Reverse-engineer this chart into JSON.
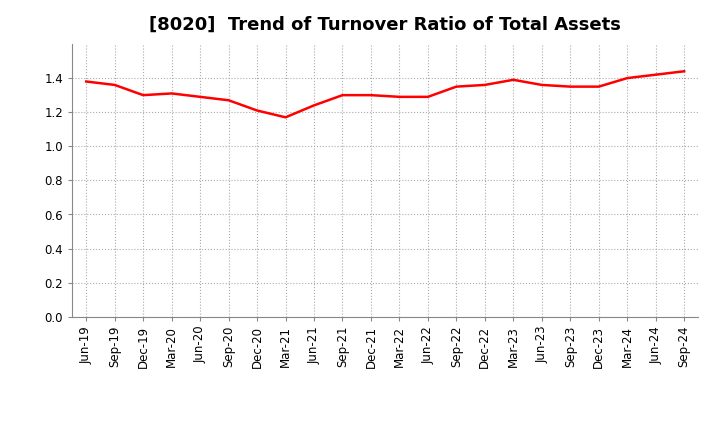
{
  "title": "[8020]  Trend of Turnover Ratio of Total Assets",
  "x_labels": [
    "Jun-19",
    "Sep-19",
    "Dec-19",
    "Mar-20",
    "Jun-20",
    "Sep-20",
    "Dec-20",
    "Mar-21",
    "Jun-21",
    "Sep-21",
    "Dec-21",
    "Mar-22",
    "Jun-22",
    "Sep-22",
    "Dec-22",
    "Mar-23",
    "Jun-23",
    "Sep-23",
    "Dec-23",
    "Mar-24",
    "Jun-24",
    "Sep-24"
  ],
  "y_values": [
    1.38,
    1.36,
    1.3,
    1.31,
    1.29,
    1.27,
    1.21,
    1.17,
    1.24,
    1.3,
    1.3,
    1.29,
    1.29,
    1.35,
    1.36,
    1.39,
    1.36,
    1.35,
    1.35,
    1.4,
    1.42,
    1.44
  ],
  "line_color": "#ff0000",
  "line_width": 1.8,
  "ylim": [
    0.0,
    1.6
  ],
  "yticks": [
    0.0,
    0.2,
    0.4,
    0.6,
    0.8,
    1.0,
    1.2,
    1.4
  ],
  "background_color": "#ffffff",
  "grid_color": "#aaaaaa",
  "title_fontsize": 13,
  "tick_fontsize": 8.5
}
